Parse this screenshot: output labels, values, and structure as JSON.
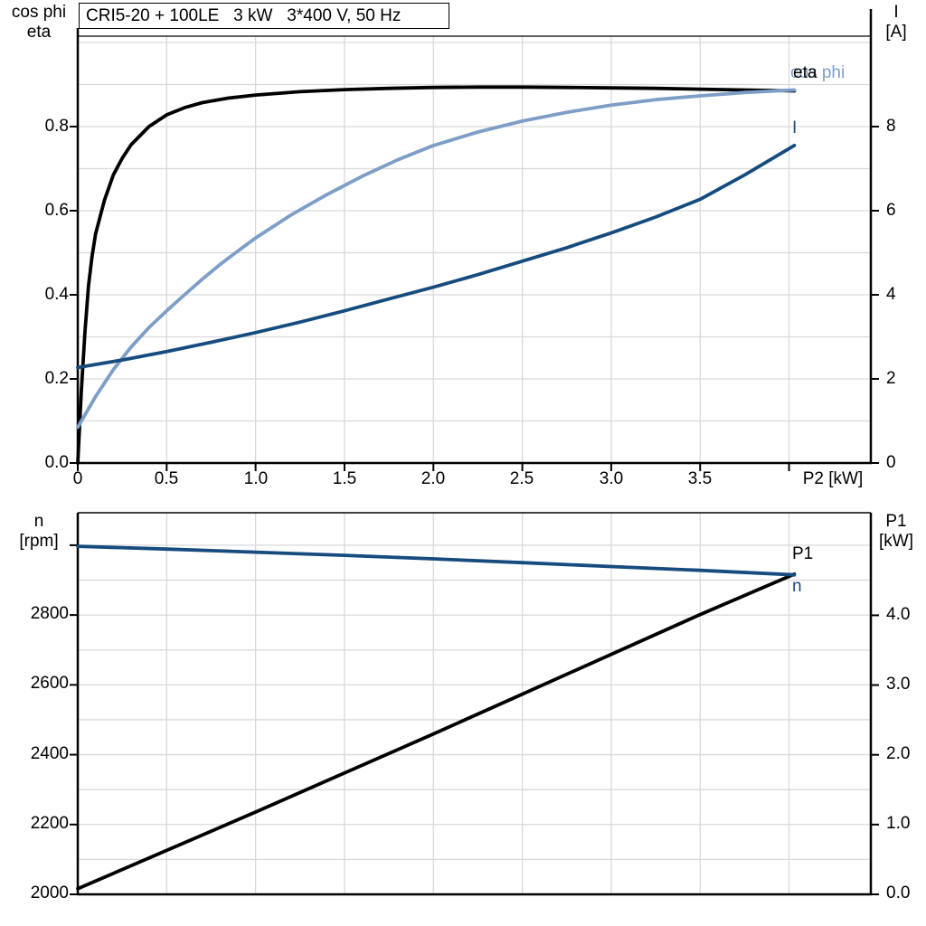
{
  "top_chart": {
    "title": "CRI5-20 + 100LE   3 kW   3*400 V, 50 Hz",
    "left_axis_title": [
      "cos phi",
      "eta"
    ],
    "right_axis_title": [
      "I",
      "[A]"
    ],
    "x_axis_title": "P2 [kW]",
    "y_left_tick_labels": [
      "0.8",
      "0.6",
      "0.4",
      "0.2",
      "0.0"
    ],
    "y_right_tick_labels": [
      "8",
      "6",
      "4",
      "2",
      "0"
    ],
    "x_tick_labels": [
      "0",
      "0.5",
      "1.0",
      "1.5",
      "2.0",
      "2.5",
      "3.0",
      "3.5"
    ],
    "curve_labels": {
      "eta": "eta",
      "cos_phi": "cos phi",
      "current": "I"
    }
  },
  "bottom_chart": {
    "left_axis_title": [
      "n",
      "[rpm]"
    ],
    "right_axis_title": [
      "P1",
      "[kW]"
    ],
    "y_left_tick_labels": [
      "2800",
      "2600",
      "2400",
      "2200",
      "2000"
    ],
    "y_right_tick_labels": [
      "4.0",
      "3.0",
      "2.0",
      "1.0",
      "0.0"
    ],
    "curve_labels": {
      "p1": "P1",
      "n": "n"
    }
  },
  "colors": {
    "eta": "#000000",
    "cos_phi": "#7d9ec7",
    "current": "#154b7e",
    "n": "#154b7e",
    "p1": "#000000",
    "grid": "#d9d9d9",
    "axis": "#000000"
  },
  "chart_data": [
    {
      "type": "line",
      "title": "CRI5-20 + 100LE   3 kW   3*400 V, 50 Hz",
      "xlabel": "P2 [kW]",
      "x_axis": {
        "min": 0,
        "max": 4.46,
        "tick_values": [
          0,
          0.5,
          1.0,
          1.5,
          2.0,
          2.5,
          3.0,
          3.5
        ],
        "extra_ticks": [
          4.0
        ],
        "grid_step": 0.5,
        "grid_max": 4.0
      },
      "y_left_axis": {
        "label": "cos phi / eta",
        "min": 0,
        "max": 1.015,
        "tick_values": [
          0,
          0.2,
          0.4,
          0.6,
          0.8
        ],
        "grid_step": 0.1,
        "grid_max": 1.0
      },
      "y_right_axis": {
        "label": "I [A]",
        "min": 0,
        "max": 10.15,
        "tick_values": [
          0,
          2,
          4,
          6,
          8
        ]
      },
      "grid": true,
      "legend_position": "right-inside",
      "series": [
        {
          "name": "eta",
          "axis": "left",
          "color_key": "eta",
          "points": [
            [
              0,
              0
            ],
            [
              0.02,
              0.17
            ],
            [
              0.04,
              0.31
            ],
            [
              0.06,
              0.42
            ],
            [
              0.08,
              0.49
            ],
            [
              0.1,
              0.545
            ],
            [
              0.15,
              0.625
            ],
            [
              0.2,
              0.685
            ],
            [
              0.25,
              0.725
            ],
            [
              0.3,
              0.757
            ],
            [
              0.4,
              0.8
            ],
            [
              0.5,
              0.828
            ],
            [
              0.6,
              0.845
            ],
            [
              0.7,
              0.857
            ],
            [
              0.85,
              0.868
            ],
            [
              1.0,
              0.875
            ],
            [
              1.25,
              0.883
            ],
            [
              1.5,
              0.888
            ],
            [
              1.75,
              0.891
            ],
            [
              2.0,
              0.893
            ],
            [
              2.25,
              0.894
            ],
            [
              2.5,
              0.894
            ],
            [
              2.75,
              0.893
            ],
            [
              3.0,
              0.892
            ],
            [
              3.25,
              0.891
            ],
            [
              3.5,
              0.889
            ],
            [
              3.75,
              0.887
            ],
            [
              4.03,
              0.885
            ]
          ]
        },
        {
          "name": "cos phi",
          "axis": "left",
          "color_key": "cos_phi",
          "points": [
            [
              0,
              0.085
            ],
            [
              0.1,
              0.158
            ],
            [
              0.2,
              0.222
            ],
            [
              0.3,
              0.276
            ],
            [
              0.4,
              0.322
            ],
            [
              0.5,
              0.362
            ],
            [
              0.6,
              0.4
            ],
            [
              0.7,
              0.437
            ],
            [
              0.8,
              0.472
            ],
            [
              0.9,
              0.504
            ],
            [
              1.0,
              0.535
            ],
            [
              1.2,
              0.59
            ],
            [
              1.4,
              0.638
            ],
            [
              1.6,
              0.682
            ],
            [
              1.8,
              0.721
            ],
            [
              2.0,
              0.755
            ],
            [
              2.25,
              0.787
            ],
            [
              2.5,
              0.813
            ],
            [
              2.75,
              0.834
            ],
            [
              3.0,
              0.851
            ],
            [
              3.25,
              0.864
            ],
            [
              3.5,
              0.873
            ],
            [
              3.75,
              0.881
            ],
            [
              4.03,
              0.887
            ]
          ]
        },
        {
          "name": "I",
          "axis": "right",
          "color_key": "current",
          "points": [
            [
              0,
              2.27
            ],
            [
              0.25,
              2.45
            ],
            [
              0.5,
              2.65
            ],
            [
              0.75,
              2.87
            ],
            [
              1.0,
              3.1
            ],
            [
              1.25,
              3.35
            ],
            [
              1.5,
              3.62
            ],
            [
              1.75,
              3.9
            ],
            [
              2.0,
              4.18
            ],
            [
              2.25,
              4.48
            ],
            [
              2.5,
              4.8
            ],
            [
              2.75,
              5.12
            ],
            [
              3.0,
              5.47
            ],
            [
              3.25,
              5.85
            ],
            [
              3.5,
              6.27
            ],
            [
              3.75,
              6.85
            ],
            [
              4.03,
              7.55
            ]
          ]
        }
      ]
    },
    {
      "type": "line",
      "title": "",
      "xlabel": "",
      "x_axis": {
        "min": 0,
        "max": 4.46,
        "tick_values": [],
        "extra_ticks": [],
        "grid_step": 0.5,
        "grid_max": 4.0
      },
      "y_left_axis": {
        "label": "n [rpm]",
        "min": 2000,
        "max": 3093,
        "tick_values": [
          2000,
          2200,
          2400,
          2600,
          2800
        ],
        "extra_ticks": [
          3000
        ],
        "grid_step": 100,
        "grid_max": 3000
      },
      "y_right_axis": {
        "label": "P1 [kW]",
        "min": 0,
        "max": 5.47,
        "tick_values": [
          0,
          1.0,
          2.0,
          3.0,
          4.0
        ]
      },
      "grid": true,
      "legend_position": "right-inside",
      "series": [
        {
          "name": "P1",
          "axis": "right",
          "color_key": "p1",
          "points": [
            [
              0,
              0.08
            ],
            [
              0.5,
              0.63
            ],
            [
              1.0,
              1.18
            ],
            [
              1.5,
              1.74
            ],
            [
              2.0,
              2.3
            ],
            [
              2.5,
              2.87
            ],
            [
              3.0,
              3.44
            ],
            [
              3.5,
              4.01
            ],
            [
              4.03,
              4.59
            ]
          ]
        },
        {
          "name": "n",
          "axis": "left",
          "color_key": "n",
          "points": [
            [
              0,
              2997
            ],
            [
              0.5,
              2989
            ],
            [
              1.0,
              2980
            ],
            [
              1.5,
              2971
            ],
            [
              2.0,
              2961
            ],
            [
              2.5,
              2950
            ],
            [
              3.0,
              2939
            ],
            [
              3.5,
              2928
            ],
            [
              4.03,
              2915
            ]
          ]
        }
      ]
    }
  ]
}
